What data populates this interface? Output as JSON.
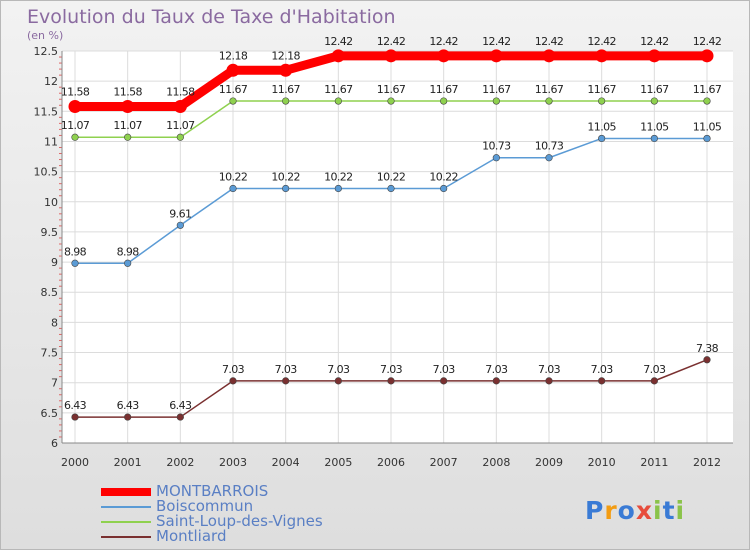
{
  "header": {
    "title": "Evolution du Taux de Taxe d'Habitation",
    "unit": "(en %)"
  },
  "logo": {
    "text": "Proxiti"
  },
  "chart_data": {
    "type": "line",
    "title": "Evolution du Taux de Taxe d'Habitation",
    "ylabel": "(en %)",
    "xlabel": "",
    "ylim": [
      6,
      12.5
    ],
    "yticks": [
      6,
      6.5,
      7,
      7.5,
      8,
      8.5,
      9,
      9.5,
      10,
      10.5,
      11,
      11.5,
      12,
      12.5
    ],
    "ytick_labels": [
      "6",
      "6.5",
      "7",
      "7.5",
      "8",
      "8.5",
      "9",
      "9.5",
      "10",
      "10.5",
      "11",
      "11.5",
      "12",
      "12.5"
    ],
    "x": [
      "2000",
      "2001",
      "2002",
      "2003",
      "2004",
      "2005",
      "2006",
      "2007",
      "2008",
      "2009",
      "2010",
      "2011",
      "2012"
    ],
    "grid": true,
    "legend": "bottom-left",
    "series": [
      {
        "name": "MONTBARROIS",
        "color": "#ff0000",
        "highlight": true,
        "values": [
          11.58,
          11.58,
          11.58,
          12.18,
          12.18,
          12.42,
          12.42,
          12.42,
          12.42,
          12.42,
          12.42,
          12.42,
          12.42
        ],
        "labels": [
          "11.58",
          "11.58",
          "11.58",
          "12.18",
          "12.18",
          "12.42",
          "12.42",
          "12.42",
          "12.42",
          "12.42",
          "12.42",
          "12.42",
          "12.42"
        ]
      },
      {
        "name": "Boiscommun",
        "color": "#5b9bd5",
        "highlight": false,
        "values": [
          8.98,
          8.98,
          9.61,
          10.22,
          10.22,
          10.22,
          10.22,
          10.22,
          10.73,
          10.73,
          11.05,
          11.05,
          11.05
        ],
        "labels": [
          "8.98",
          "8.98",
          "9.61",
          "10.22",
          "10.22",
          "10.22",
          "10.22",
          "10.22",
          "10.73",
          "10.73",
          "11.05",
          "11.05",
          "11.05"
        ]
      },
      {
        "name": "Saint-Loup-des-Vignes",
        "color": "#8fd14f",
        "highlight": false,
        "values": [
          11.07,
          11.07,
          11.07,
          11.67,
          11.67,
          11.67,
          11.67,
          11.67,
          11.67,
          11.67,
          11.67,
          11.67,
          11.67
        ],
        "labels": [
          "11.07",
          "11.07",
          "11.07",
          "11.67",
          "11.67",
          "11.67",
          "11.67",
          "11.67",
          "11.67",
          "11.67",
          "11.67",
          "11.67",
          "11.67"
        ]
      },
      {
        "name": "Montliard",
        "color": "#7a3030",
        "highlight": false,
        "values": [
          6.43,
          6.43,
          6.43,
          7.03,
          7.03,
          7.03,
          7.03,
          7.03,
          7.03,
          7.03,
          7.03,
          7.03,
          7.38
        ],
        "labels": [
          "6.43",
          "6.43",
          "6.43",
          "7.03",
          "7.03",
          "7.03",
          "7.03",
          "7.03",
          "7.03",
          "7.03",
          "7.03",
          "7.03",
          "7.38"
        ]
      }
    ]
  }
}
